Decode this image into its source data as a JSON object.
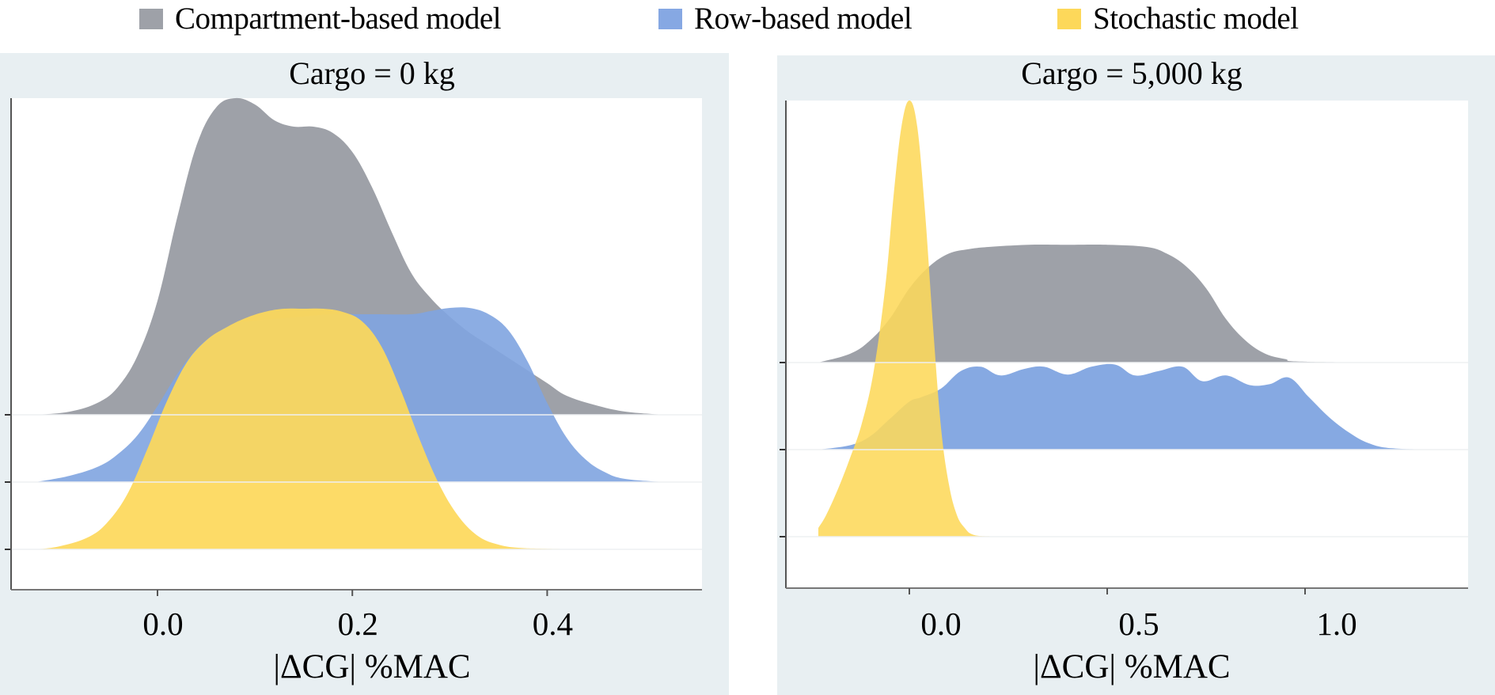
{
  "chart_data": {
    "type": "area",
    "subtype": "ridgeline-density",
    "legend": {
      "placement": "top",
      "entries": [
        {
          "name": "Compartment-based model",
          "color": "#9ea1a8"
        },
        {
          "name": "Row-based model",
          "color": "#7fa4e0"
        },
        {
          "name": "Stochastic model",
          "color": "#fdd85a"
        }
      ]
    },
    "panels": [
      {
        "title": "Cargo = 0 kg",
        "xlabel": "|ΔCG| %MAC",
        "ylabel": "",
        "xlim": [
          -0.155,
          0.55
        ],
        "xticks": [
          0.0,
          0.2,
          0.4
        ],
        "xtick_labels": [
          "0.0",
          "0.2",
          "0.4"
        ],
        "grid": false,
        "series": [
          {
            "name": "Compartment-based model",
            "color": "#9ea1a8",
            "opacity": 1.0,
            "row": 0,
            "x": [
              -0.125,
              -0.09,
              -0.06,
              -0.04,
              -0.02,
              0.0,
              0.02,
              0.04,
              0.06,
              0.08,
              0.1,
              0.12,
              0.14,
              0.16,
              0.18,
              0.2,
              0.22,
              0.24,
              0.26,
              0.28,
              0.3,
              0.32,
              0.34,
              0.36,
              0.38,
              0.4,
              0.42,
              0.45,
              0.48,
              0.52
            ],
            "density": [
              0.0,
              0.01,
              0.04,
              0.09,
              0.19,
              0.36,
              0.62,
              0.85,
              0.97,
              1.0,
              0.98,
              0.93,
              0.91,
              0.91,
              0.89,
              0.83,
              0.72,
              0.58,
              0.45,
              0.37,
              0.31,
              0.26,
              0.22,
              0.18,
              0.14,
              0.1,
              0.06,
              0.03,
              0.01,
              0.0
            ]
          },
          {
            "name": "Row-based model",
            "color": "#7fa4e0",
            "opacity": 0.9,
            "row": 1,
            "x": [
              -0.125,
              -0.09,
              -0.06,
              -0.04,
              -0.02,
              0.0,
              0.02,
              0.04,
              0.06,
              0.08,
              0.1,
              0.14,
              0.18,
              0.22,
              0.26,
              0.28,
              0.3,
              0.32,
              0.34,
              0.36,
              0.38,
              0.4,
              0.42,
              0.44,
              0.46,
              0.48,
              0.52
            ],
            "density": [
              0.0,
              0.02,
              0.05,
              0.09,
              0.15,
              0.24,
              0.34,
              0.42,
              0.47,
              0.5,
              0.51,
              0.52,
              0.53,
              0.53,
              0.53,
              0.54,
              0.55,
              0.55,
              0.53,
              0.48,
              0.38,
              0.25,
              0.14,
              0.07,
              0.03,
              0.01,
              0.0
            ]
          },
          {
            "name": "Stochastic model",
            "color": "#fdd85a",
            "opacity": 0.92,
            "row": 2,
            "x": [
              -0.125,
              -0.1,
              -0.07,
              -0.05,
              -0.03,
              -0.01,
              0.01,
              0.03,
              0.05,
              0.07,
              0.09,
              0.11,
              0.13,
              0.15,
              0.17,
              0.19,
              0.21,
              0.23,
              0.25,
              0.27,
              0.29,
              0.31,
              0.33,
              0.35,
              0.37,
              0.4,
              0.45,
              0.52
            ],
            "density": [
              0.0,
              0.01,
              0.04,
              0.09,
              0.18,
              0.32,
              0.47,
              0.59,
              0.66,
              0.7,
              0.73,
              0.75,
              0.76,
              0.76,
              0.76,
              0.75,
              0.72,
              0.64,
              0.5,
              0.34,
              0.2,
              0.1,
              0.04,
              0.015,
              0.005,
              0.002,
              0.001,
              0.0
            ]
          }
        ]
      },
      {
        "title": "Cargo = 5,000 kg",
        "xlabel": "|ΔCG| %MAC",
        "ylabel": "",
        "xlim": [
          -0.31,
          1.415
        ],
        "xticks": [
          0.0,
          0.5,
          1.0
        ],
        "xtick_labels": [
          "0.0",
          "0.5",
          "1.0"
        ],
        "grid": false,
        "series": [
          {
            "name": "Compartment-based model",
            "color": "#9ea1a8",
            "opacity": 1.0,
            "row": 0,
            "x": [
              -0.23,
              -0.15,
              -0.1,
              -0.05,
              0.0,
              0.05,
              0.1,
              0.15,
              0.2,
              0.3,
              0.4,
              0.5,
              0.6,
              0.65,
              0.7,
              0.75,
              0.8,
              0.85,
              0.9,
              0.95,
              1.0,
              1.34
            ],
            "density": [
              0.0,
              0.02,
              0.05,
              0.1,
              0.17,
              0.22,
              0.25,
              0.26,
              0.265,
              0.27,
              0.27,
              0.27,
              0.265,
              0.25,
              0.22,
              0.17,
              0.1,
              0.05,
              0.02,
              0.008,
              0.002,
              0.0
            ]
          },
          {
            "name": "Row-based model",
            "color": "#7fa4e0",
            "opacity": 0.95,
            "row": 1,
            "x": [
              -0.23,
              -0.15,
              -0.1,
              -0.05,
              0.0,
              0.03,
              0.08,
              0.13,
              0.18,
              0.23,
              0.29,
              0.34,
              0.4,
              0.46,
              0.52,
              0.57,
              0.63,
              0.69,
              0.74,
              0.8,
              0.86,
              0.91,
              0.96,
              1.01,
              1.06,
              1.11,
              1.16,
              1.22,
              1.34
            ],
            "density": [
              0.0,
              0.01,
              0.03,
              0.07,
              0.11,
              0.12,
              0.14,
              0.18,
              0.19,
              0.17,
              0.185,
              0.19,
              0.172,
              0.19,
              0.195,
              0.17,
              0.18,
              0.19,
              0.157,
              0.17,
              0.148,
              0.15,
              0.165,
              0.12,
              0.075,
              0.04,
              0.015,
              0.003,
              0.0
            ]
          },
          {
            "name": "Stochastic model",
            "color": "#fdd85a",
            "opacity": 0.88,
            "row": 2,
            "x": [
              -0.23,
              -0.21,
              -0.18,
              -0.15,
              -0.12,
              -0.09,
              -0.06,
              -0.04,
              -0.02,
              0.0,
              0.02,
              0.04,
              0.06,
              0.08,
              0.1,
              0.12,
              0.14,
              0.16,
              0.2,
              0.3,
              1.34
            ],
            "density": [
              0.02,
              0.05,
              0.11,
              0.18,
              0.26,
              0.38,
              0.58,
              0.78,
              0.94,
              1.0,
              0.94,
              0.74,
              0.48,
              0.25,
              0.12,
              0.05,
              0.02,
              0.005,
              0.001,
              0.0,
              0.0
            ]
          }
        ]
      }
    ]
  }
}
